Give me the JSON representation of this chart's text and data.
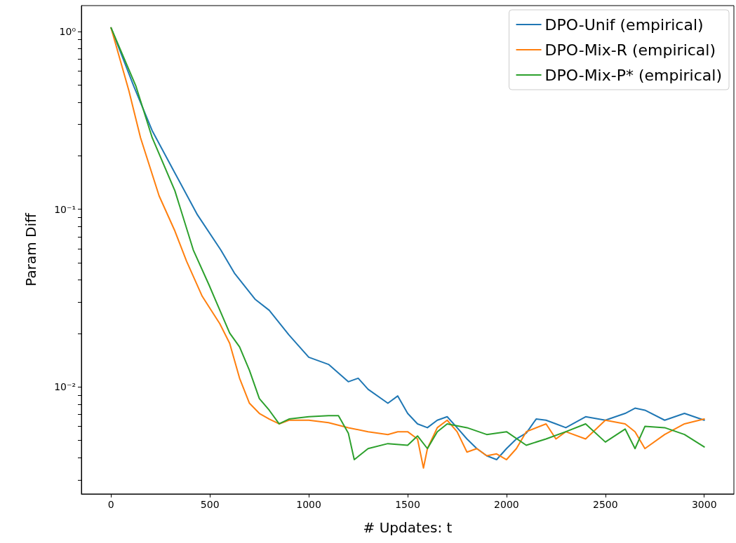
{
  "chart_data": {
    "type": "line",
    "xlabel": "# Updates: t",
    "ylabel": "Param Diff",
    "log": "y",
    "legend": "top right",
    "xlim": [
      -150,
      3150
    ],
    "xticks": [
      0,
      500,
      1000,
      1500,
      2000,
      2500,
      3000
    ],
    "ylim": [
      0.0025,
      1.4
    ],
    "yticks": [
      {
        "value": 0.003,
        "label": null
      },
      {
        "value": 0.004,
        "label": null
      },
      {
        "value": 0.005,
        "label": null
      },
      {
        "value": 0.006,
        "label": null
      },
      {
        "value": 0.007,
        "label": null
      },
      {
        "value": 0.008,
        "label": null
      },
      {
        "value": 0.009,
        "label": null
      },
      {
        "value": 0.01,
        "label": "10⁻²"
      },
      {
        "value": 0.02,
        "label": null
      },
      {
        "value": 0.03,
        "label": null
      },
      {
        "value": 0.04,
        "label": null
      },
      {
        "value": 0.05,
        "label": null
      },
      {
        "value": 0.06,
        "label": null
      },
      {
        "value": 0.07,
        "label": null
      },
      {
        "value": 0.08,
        "label": null
      },
      {
        "value": 0.09,
        "label": null
      },
      {
        "value": 0.1,
        "label": "10⁻¹"
      },
      {
        "value": 0.2,
        "label": null
      },
      {
        "value": 0.3,
        "label": null
      },
      {
        "value": 0.4,
        "label": null
      },
      {
        "value": 0.5,
        "label": null
      },
      {
        "value": 0.6,
        "label": null
      },
      {
        "value": 0.7,
        "label": null
      },
      {
        "value": 0.8,
        "label": null
      },
      {
        "value": 0.9,
        "label": null
      },
      {
        "value": 1,
        "label": "10⁰"
      }
    ],
    "series": [
      {
        "name": "DPO-Unif (empirical)",
        "color": "#1f77b4",
        "x": [
          0,
          114,
          208,
          323,
          437,
          555,
          624,
          728,
          800,
          900,
          1000,
          1100,
          1200,
          1250,
          1300,
          1400,
          1450,
          1500,
          1550,
          1600,
          1650,
          1700,
          1750,
          1800,
          1850,
          1900,
          1950,
          2000,
          2050,
          2100,
          2150,
          2200,
          2250,
          2300,
          2400,
          2500,
          2600,
          2650,
          2700,
          2800,
          2900,
          3000
        ],
        "values": [
          1.05,
          0.496,
          0.277,
          0.16,
          0.093,
          0.059,
          0.0437,
          0.0312,
          0.027,
          0.0196,
          0.0147,
          0.0134,
          0.0107,
          0.0112,
          0.0097,
          0.0081,
          0.0089,
          0.0071,
          0.0062,
          0.0059,
          0.0065,
          0.0068,
          0.0059,
          0.0051,
          0.0045,
          0.0041,
          0.0039,
          0.0045,
          0.0051,
          0.0055,
          0.0066,
          0.0065,
          0.0062,
          0.0059,
          0.0068,
          0.0065,
          0.0071,
          0.0076,
          0.0074,
          0.0065,
          0.0071,
          0.0065
        ]
      },
      {
        "name": "DPO-Mix-R (empirical)",
        "color": "#ff7f0e",
        "x": [
          0,
          90,
          149,
          243,
          323,
          382,
          461,
          500,
          550,
          600,
          650,
          700,
          750,
          800,
          850,
          900,
          1000,
          1100,
          1200,
          1300,
          1400,
          1450,
          1500,
          1550,
          1580,
          1600,
          1650,
          1700,
          1750,
          1800,
          1850,
          1900,
          1950,
          2000,
          2050,
          2100,
          2200,
          2250,
          2300,
          2400,
          2500,
          2600,
          2650,
          2700,
          2800,
          2900,
          3000
        ],
        "values": [
          1.05,
          0.466,
          0.253,
          0.119,
          0.0754,
          0.051,
          0.0324,
          0.0277,
          0.0227,
          0.0176,
          0.0112,
          0.0081,
          0.0071,
          0.0066,
          0.0062,
          0.0065,
          0.0065,
          0.0063,
          0.0059,
          0.0056,
          0.0054,
          0.0056,
          0.0056,
          0.0051,
          0.0035,
          0.0045,
          0.0059,
          0.0065,
          0.0056,
          0.0043,
          0.0045,
          0.0041,
          0.0042,
          0.0039,
          0.0045,
          0.0056,
          0.0062,
          0.0051,
          0.0056,
          0.0051,
          0.0065,
          0.0062,
          0.0056,
          0.0045,
          0.0054,
          0.0062,
          0.0066
        ]
      },
      {
        "name": "DPO-Mix-P* (empirical)",
        "color": "#2ca02c",
        "x": [
          0,
          125,
          208,
          323,
          416,
          496,
          531,
          600,
          650,
          700,
          750,
          800,
          850,
          900,
          1000,
          1100,
          1150,
          1200,
          1230,
          1300,
          1400,
          1500,
          1550,
          1600,
          1650,
          1700,
          1800,
          1900,
          2000,
          2100,
          2200,
          2300,
          2400,
          2500,
          2600,
          2650,
          2700,
          2800,
          2900,
          3000
        ],
        "values": [
          1.05,
          0.496,
          0.253,
          0.127,
          0.059,
          0.0374,
          0.0303,
          0.0201,
          0.0168,
          0.0124,
          0.0086,
          0.0074,
          0.0062,
          0.0066,
          0.0068,
          0.0069,
          0.0069,
          0.0055,
          0.0039,
          0.0045,
          0.0048,
          0.0047,
          0.0053,
          0.0045,
          0.0056,
          0.0062,
          0.0059,
          0.0054,
          0.0056,
          0.0047,
          0.0051,
          0.0056,
          0.0062,
          0.0049,
          0.0058,
          0.0045,
          0.006,
          0.0059,
          0.0054,
          0.0046
        ]
      }
    ]
  }
}
